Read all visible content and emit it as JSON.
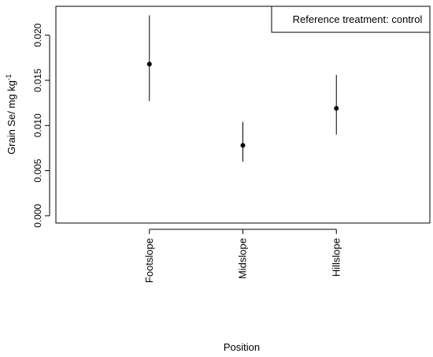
{
  "chart_data": {
    "type": "scatter",
    "categories": [
      "Footslope",
      "Midslope",
      "Hillslope"
    ],
    "points": [
      {
        "x": "Footslope",
        "y": 0.0168,
        "lower": 0.0127,
        "upper": 0.0222
      },
      {
        "x": "Midslope",
        "y": 0.0078,
        "lower": 0.006,
        "upper": 0.0104
      },
      {
        "x": "Hillslope",
        "y": 0.0119,
        "lower": 0.009,
        "upper": 0.0156
      }
    ],
    "ylim": [
      -0.0008,
      0.0232
    ],
    "yticks": [
      "0.000",
      "0.005",
      "0.010",
      "0.015",
      "0.020"
    ],
    "ylabel": {
      "main": "Grain Se/ mg kg",
      "superscript": "-1"
    },
    "xlabel": "Position",
    "legend": {
      "text": "Reference treatment: control",
      "position": "top-right"
    },
    "grid": false,
    "colors": {
      "points": "#000000",
      "axes": "#000000"
    }
  }
}
